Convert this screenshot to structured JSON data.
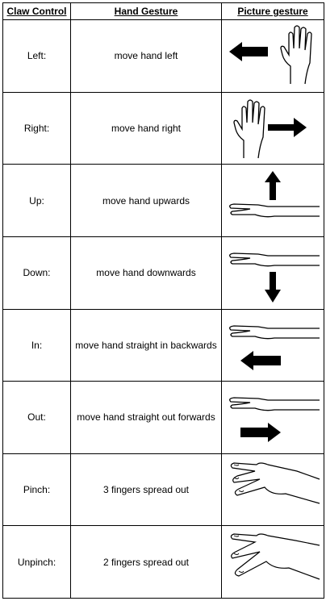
{
  "header": {
    "col1": "Claw Control",
    "col2": "Hand Gesture",
    "col3": "Picture gesture"
  },
  "rows": [
    {
      "control": "Left:",
      "gesture": "move hand left",
      "icon": "hand-open-arrow-left-icon"
    },
    {
      "control": "Right:",
      "gesture": "move hand right",
      "icon": "hand-open-arrow-right-icon"
    },
    {
      "control": "Up:",
      "gesture": "move hand upwards",
      "icon": "hand-flat-arrow-up-icon"
    },
    {
      "control": "Down:",
      "gesture": "move hand downwards",
      "icon": "hand-flat-arrow-down-icon"
    },
    {
      "control": "In:",
      "gesture": "move hand straight in backwards",
      "icon": "hand-flat-arrow-left-icon"
    },
    {
      "control": "Out:",
      "gesture": "move hand straight out forwards",
      "icon": "hand-flat-arrow-right-icon"
    },
    {
      "control": "Pinch:",
      "gesture": "3 fingers spread out",
      "icon": "three-fingers-spread-icon"
    },
    {
      "control": "Unpinch:",
      "gesture": "2 fingers spread out",
      "icon": "two-fingers-spread-icon"
    }
  ]
}
